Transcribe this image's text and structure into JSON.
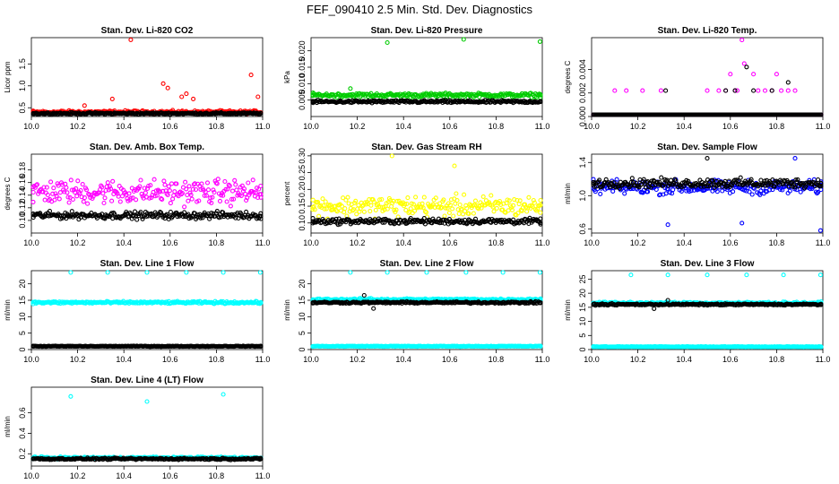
{
  "figure": {
    "title": "FEF_090410  2.5 Min. Std. Dev. Diagnostics"
  },
  "chart_data": [
    {
      "type": "scatter",
      "title": "Stan. Dev. Li-820 CO2",
      "ylabel": "Licor ppm",
      "xlim": [
        10.0,
        11.0
      ],
      "ylim": [
        0.3,
        2.1
      ],
      "xticks": [
        10.0,
        10.2,
        10.4,
        10.6,
        10.8,
        11.0
      ],
      "yticks": [
        0.5,
        1.0,
        1.5
      ],
      "series": [
        {
          "color": "#ff0000",
          "base": 0.4,
          "spread": 0.05,
          "outliers": [
            [
              10.43,
              2.05
            ],
            [
              10.57,
              1.05
            ],
            [
              10.59,
              0.95
            ],
            [
              10.65,
              0.75
            ],
            [
              10.67,
              0.82
            ],
            [
              10.7,
              0.7
            ],
            [
              10.95,
              1.25
            ],
            [
              10.98,
              0.75
            ],
            [
              10.35,
              0.7
            ],
            [
              10.23,
              0.55
            ]
          ]
        },
        {
          "color": "#000000",
          "base": 0.37,
          "spread": 0.03,
          "outliers": []
        }
      ]
    },
    {
      "type": "scatter",
      "title": "Stan. Dev. Li-820 Pressure",
      "ylabel": "kPa",
      "xlim": [
        10.0,
        11.0
      ],
      "ylim": [
        0.0,
        0.024
      ],
      "xticks": [
        10.0,
        10.2,
        10.4,
        10.6,
        10.8,
        11.0
      ],
      "yticks": [
        0.005,
        0.01,
        0.015,
        0.02
      ],
      "series": [
        {
          "color": "#00cc00",
          "base": 0.0065,
          "spread": 0.0009,
          "outliers": [
            [
              10.33,
              0.0225
            ],
            [
              10.66,
              0.0235
            ],
            [
              10.99,
              0.0228
            ],
            [
              10.17,
              0.0085
            ]
          ]
        },
        {
          "color": "#000000",
          "base": 0.0045,
          "spread": 0.0006,
          "outliers": []
        }
      ]
    },
    {
      "type": "scatter",
      "title": "Stan. Dev. Li-820 Temp.",
      "ylabel": "degrees C",
      "xlim": [
        10.0,
        11.0
      ],
      "ylim": [
        0.0,
        0.0067
      ],
      "xticks": [
        10.0,
        10.2,
        10.4,
        10.6,
        10.8,
        11.0
      ],
      "yticks": [
        0.0,
        0.002,
        0.004
      ],
      "series": [
        {
          "color": "#ff00ff",
          "base": 0.0,
          "spread": 0.0,
          "outliers": [
            [
              10.1,
              0.0022
            ],
            [
              10.15,
              0.0022
            ],
            [
              10.22,
              0.0022
            ],
            [
              10.3,
              0.0022
            ],
            [
              10.5,
              0.0022
            ],
            [
              10.58,
              0.0022
            ],
            [
              10.62,
              0.0022
            ],
            [
              10.65,
              0.0065
            ],
            [
              10.66,
              0.0045
            ],
            [
              10.7,
              0.0036
            ],
            [
              10.72,
              0.0022
            ],
            [
              10.75,
              0.0022
            ],
            [
              10.78,
              0.0022
            ],
            [
              10.8,
              0.0036
            ],
            [
              10.82,
              0.0022
            ],
            [
              10.85,
              0.0022
            ],
            [
              10.88,
              0.0022
            ],
            [
              10.6,
              0.0036
            ],
            [
              10.63,
              0.0022
            ],
            [
              10.55,
              0.0022
            ]
          ]
        },
        {
          "color": "#000000",
          "base": 0.0,
          "spread": 0.0,
          "outliers": [
            [
              10.32,
              0.0022
            ],
            [
              10.58,
              0.0022
            ],
            [
              10.67,
              0.0042
            ],
            [
              10.7,
              0.0022
            ],
            [
              10.78,
              0.0022
            ],
            [
              10.85,
              0.0029
            ],
            [
              10.62,
              0.0022
            ]
          ]
        }
      ]
    },
    {
      "type": "scatter",
      "title": "Stan. Dev. Amb. Box Temp.",
      "ylabel": "degrees C",
      "xlim": [
        10.0,
        11.0
      ],
      "ylim": [
        0.08,
        0.205
      ],
      "xticks": [
        10.0,
        10.2,
        10.4,
        10.6,
        10.8,
        11.0
      ],
      "yticks": [
        0.1,
        0.12,
        0.14,
        0.16,
        0.18
      ],
      "series": [
        {
          "color": "#ff00ff",
          "base": 0.145,
          "spread": 0.028,
          "outliers": []
        },
        {
          "color": "#000000",
          "base": 0.108,
          "spread": 0.008,
          "outliers": []
        }
      ]
    },
    {
      "type": "scatter",
      "title": "Stan. Dev. Gas Stream RH",
      "ylabel": "percent",
      "xlim": [
        10.0,
        11.0
      ],
      "ylim": [
        0.07,
        0.305
      ],
      "xticks": [
        10.0,
        10.2,
        10.4,
        10.6,
        10.8,
        11.0
      ],
      "yticks": [
        0.1,
        0.15,
        0.2,
        0.25,
        0.3
      ],
      "series": [
        {
          "color": "#ffff00",
          "base": 0.15,
          "spread": 0.045,
          "outliers": [
            [
              10.35,
              0.3
            ],
            [
              10.62,
              0.27
            ]
          ]
        },
        {
          "color": "#000000",
          "base": 0.105,
          "spread": 0.012,
          "outliers": []
        }
      ]
    },
    {
      "type": "scatter",
      "title": "Stan. Dev. Sample Flow",
      "ylabel": "ml/min",
      "xlim": [
        10.0,
        11.0
      ],
      "ylim": [
        0.55,
        1.5
      ],
      "xticks": [
        10.0,
        10.2,
        10.4,
        10.6,
        10.8,
        11.0
      ],
      "yticks": [
        0.6,
        1.0,
        1.4
      ],
      "series": [
        {
          "color": "#0000ff",
          "base": 1.1,
          "spread": 0.12,
          "outliers": [
            [
              10.33,
              0.65
            ],
            [
              10.65,
              0.67
            ],
            [
              10.88,
              1.45
            ],
            [
              10.99,
              0.58
            ]
          ]
        },
        {
          "color": "#000000",
          "base": 1.15,
          "spread": 0.08,
          "outliers": [
            [
              10.5,
              1.45
            ]
          ]
        }
      ]
    },
    {
      "type": "scatter",
      "title": "Stan. Dev. Line 1 Flow",
      "ylabel": "ml/min",
      "xlim": [
        10.0,
        11.0
      ],
      "ylim": [
        0,
        24
      ],
      "xticks": [
        10.0,
        10.2,
        10.4,
        10.6,
        10.8,
        11.0
      ],
      "yticks": [
        0,
        5,
        10,
        15,
        20
      ],
      "series": [
        {
          "color": "#00ffff",
          "base": 14.3,
          "spread": 0.5,
          "outliers": [
            [
              10.17,
              23.5
            ],
            [
              10.33,
              23.5
            ],
            [
              10.5,
              23.5
            ],
            [
              10.67,
              23.5
            ],
            [
              10.83,
              23.5
            ],
            [
              10.99,
              23.5
            ]
          ]
        },
        {
          "color": "#000000",
          "base": 1.0,
          "spread": 0.15,
          "outliers": []
        }
      ]
    },
    {
      "type": "scatter",
      "title": "Stan. Dev. Line 2 Flow",
      "ylabel": "ml/min",
      "xlim": [
        10.0,
        11.0
      ],
      "ylim": [
        0,
        24
      ],
      "xticks": [
        10.0,
        10.2,
        10.4,
        10.6,
        10.8,
        11.0
      ],
      "yticks": [
        0,
        5,
        10,
        15,
        20
      ],
      "series": [
        {
          "color": "#00ffff",
          "base": 1.0,
          "spread": 0.15,
          "outliers": [
            [
              10.17,
              23.5
            ],
            [
              10.33,
              23.5
            ],
            [
              10.5,
              23.5
            ],
            [
              10.67,
              23.5
            ],
            [
              10.83,
              23.5
            ],
            [
              10.99,
              23.5
            ]
          ]
        },
        {
          "color": "#00ffff",
          "base": 15.2,
          "spread": 0.5,
          "outliers": []
        },
        {
          "color": "#000000",
          "base": 14.3,
          "spread": 0.4,
          "outliers": [
            [
              10.23,
              16.5
            ],
            [
              10.27,
              12.5
            ]
          ]
        }
      ]
    },
    {
      "type": "scatter",
      "title": "Stan. Dev. Line 3 Flow",
      "ylabel": "ml/min",
      "xlim": [
        10.0,
        11.0
      ],
      "ylim": [
        0,
        28
      ],
      "xticks": [
        10.0,
        10.2,
        10.4,
        10.6,
        10.8,
        11.0
      ],
      "yticks": [
        0,
        5,
        10,
        15,
        20,
        25
      ],
      "series": [
        {
          "color": "#00ffff",
          "base": 1.0,
          "spread": 0.15,
          "outliers": [
            [
              10.17,
              26.5
            ],
            [
              10.33,
              26.5
            ],
            [
              10.5,
              26.5
            ],
            [
              10.67,
              26.5
            ],
            [
              10.83,
              26.5
            ],
            [
              10.99,
              26.5
            ]
          ]
        },
        {
          "color": "#00ffff",
          "base": 16.5,
          "spread": 0.6,
          "outliers": []
        },
        {
          "color": "#000000",
          "base": 16.0,
          "spread": 0.4,
          "outliers": [
            [
              10.27,
              14.5
            ],
            [
              10.33,
              17.5
            ]
          ]
        }
      ]
    },
    {
      "type": "scatter",
      "title": "Stan. Dev. Line 4 (LT) Flow",
      "ylabel": "ml/min",
      "xlim": [
        10.0,
        11.0
      ],
      "ylim": [
        0.08,
        0.85
      ],
      "xticks": [
        10.0,
        10.2,
        10.4,
        10.6,
        10.8,
        11.0
      ],
      "yticks": [
        0.2,
        0.4,
        0.6
      ],
      "series": [
        {
          "color": "#00ffff",
          "base": 0.16,
          "spread": 0.015,
          "outliers": [
            [
              10.17,
              0.76
            ],
            [
              10.5,
              0.71
            ],
            [
              10.83,
              0.78
            ]
          ]
        },
        {
          "color": "#000000",
          "base": 0.15,
          "spread": 0.012,
          "outliers": []
        }
      ]
    }
  ]
}
